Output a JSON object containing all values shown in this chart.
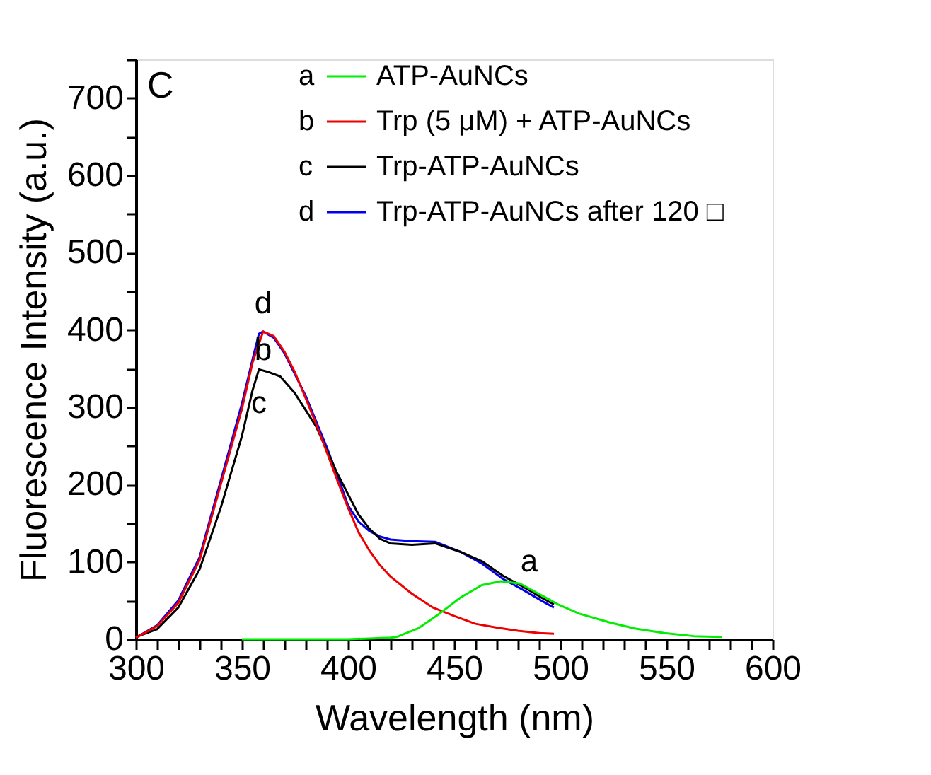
{
  "chart_data": {
    "type": "line",
    "title": "C",
    "xlabel": "Wavelength (nm)",
    "ylabel": "Fluorescence Intensity (a.u.)",
    "xlim": [
      300,
      600
    ],
    "ylim": [
      0,
      750
    ],
    "xticks": [
      300,
      {
        "value": 310,
        "label": null
      },
      {
        "value": 320,
        "label": null
      },
      {
        "value": 330,
        "label": null
      },
      {
        "value": 340,
        "label": null
      },
      350,
      {
        "value": 360,
        "label": null
      },
      {
        "value": 370,
        "label": null
      },
      {
        "value": 380,
        "label": null
      },
      {
        "value": 390,
        "label": null
      },
      400,
      {
        "value": 410,
        "label": null
      },
      {
        "value": 420,
        "label": null
      },
      {
        "value": 430,
        "label": null
      },
      {
        "value": 440,
        "label": null
      },
      450,
      {
        "value": 460,
        "label": null
      },
      {
        "value": 470,
        "label": null
      },
      {
        "value": 480,
        "label": null
      },
      {
        "value": 490,
        "label": null
      },
      500,
      {
        "value": 510,
        "label": null
      },
      {
        "value": 520,
        "label": null
      },
      {
        "value": 530,
        "label": null
      },
      {
        "value": 540,
        "label": null
      },
      550,
      {
        "value": 560,
        "label": null
      },
      {
        "value": 570,
        "label": null
      },
      {
        "value": 580,
        "label": null
      },
      {
        "value": 590,
        "label": null
      },
      600
    ],
    "yticks": [
      0,
      {
        "value": 50,
        "label": null
      },
      100,
      {
        "value": 150,
        "label": null
      },
      200,
      {
        "value": 250,
        "label": null
      },
      300,
      {
        "value": 350,
        "label": null
      },
      400,
      {
        "value": 450,
        "label": null
      },
      500,
      {
        "value": 550,
        "label": null
      },
      600,
      {
        "value": 650,
        "label": null
      },
      700,
      {
        "value": 750,
        "label": null
      }
    ],
    "grid": false,
    "legend": "top right",
    "line_style": "solid",
    "marker": "none",
    "series": [
      {
        "name": "ATP-AuNCs",
        "color": "#00ee00",
        "x": [
          350,
          380,
          400,
          410,
          420,
          423,
          433,
          443,
          453,
          463,
          472,
          481,
          491,
          499,
          509,
          523,
          535,
          549,
          563,
          576
        ],
        "values": [
          0,
          0,
          0,
          1,
          2,
          3,
          14,
          33,
          54,
          70,
          75,
          72,
          57,
          45,
          33,
          22,
          14,
          8,
          4,
          3
        ]
      },
      {
        "name": "Trp (5 μM) + ATP-AuNCs",
        "color": "#ee0000",
        "x": [
          300,
          310,
          320,
          330,
          340,
          350,
          355,
          360,
          365,
          370,
          375,
          380,
          385,
          390,
          395,
          400,
          405,
          410,
          415,
          420,
          430,
          440,
          450,
          460,
          470,
          480,
          490,
          497
        ],
        "values": [
          2,
          17,
          47,
          102,
          200,
          298,
          358,
          398,
          392,
          372,
          345,
          312,
          278,
          242,
          205,
          170,
          138,
          115,
          96,
          81,
          59,
          41,
          30,
          20,
          15,
          11,
          8,
          7
        ]
      },
      {
        "name": "Trp-ATP-AuNCs",
        "color": "#000000",
        "x": [
          300,
          310,
          320,
          330,
          340,
          350,
          355,
          358,
          362,
          368,
          375,
          385,
          395,
          405,
          410,
          415,
          420,
          430,
          441,
          453,
          463,
          473,
          483,
          491,
          497
        ],
        "values": [
          3,
          13,
          41,
          90,
          170,
          263,
          322,
          349,
          346,
          340,
          318,
          275,
          214,
          161,
          143,
          130,
          124,
          122,
          124,
          113,
          101,
          82,
          67,
          54,
          45
        ]
      },
      {
        "name": "Trp-ATP-AuNCs after 120 □",
        "color": "#0000ee",
        "x": [
          300,
          310,
          320,
          330,
          340,
          350,
          355,
          358,
          360,
          365,
          370,
          380,
          390,
          395,
          400,
          405,
          410,
          415,
          420,
          430,
          441,
          453,
          463,
          473,
          483,
          491,
          497
        ],
        "values": [
          2,
          18,
          50,
          106,
          205,
          305,
          362,
          395,
          398,
          390,
          370,
          315,
          248,
          212,
          173,
          152,
          140,
          133,
          129,
          127,
          126,
          113,
          98,
          78,
          63,
          50,
          41
        ]
      }
    ],
    "annotations": [
      "d",
      "b",
      "c",
      "a",
      "a",
      "b",
      "c",
      "d"
    ]
  }
}
